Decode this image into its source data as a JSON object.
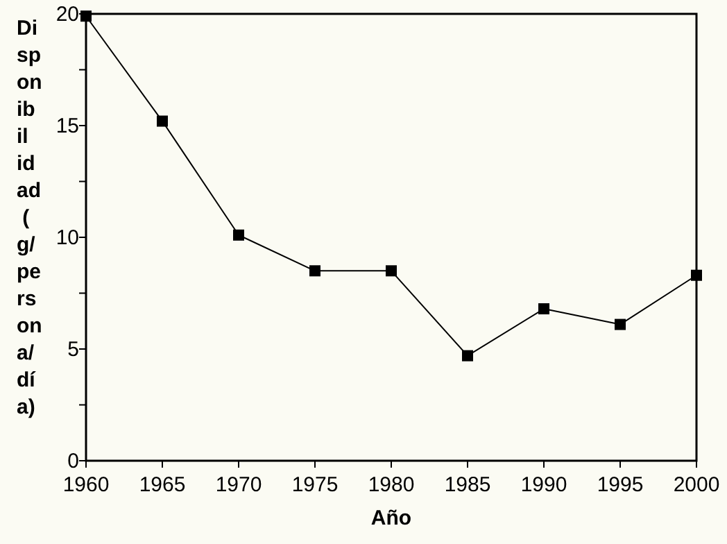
{
  "chart_data": {
    "type": "line",
    "xlabel": "Año",
    "ylabel": "Disponibilidad (g/persona/día)",
    "x": [
      1960,
      1965,
      1970,
      1975,
      1980,
      1985,
      1990,
      1995,
      2000
    ],
    "series": [
      {
        "color": "#000000",
        "values": [
          19.9,
          15.2,
          10.1,
          8.5,
          8.5,
          4.7,
          6.8,
          6.1,
          8.3
        ]
      }
    ],
    "xlim": [
      1960,
      2000
    ],
    "xticks": [
      1960,
      1965,
      1970,
      1975,
      1980,
      1985,
      1990,
      1995,
      2000
    ],
    "ylim": [
      0,
      20
    ],
    "yticks": [
      0,
      {
        "value": 2.5,
        "label": null
      },
      5,
      {
        "value": 7.5,
        "label": null
      },
      10,
      {
        "value": 12.5,
        "label": null
      },
      15,
      {
        "value": 17.5,
        "label": null
      },
      20
    ],
    "marker": "square",
    "line_style": "solid"
  }
}
